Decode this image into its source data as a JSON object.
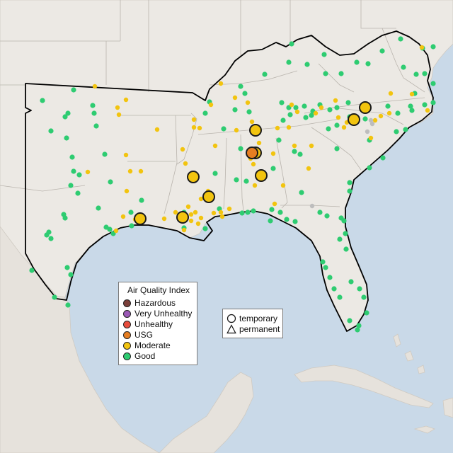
{
  "colors": {
    "ocean": "#c9d9e8",
    "land": "#ece9e4",
    "foreign_land": "#e6e2dc",
    "state_border": "#b9b4ad",
    "region_outline": "#000000",
    "good": "#2ecc71",
    "moderate": "#f2c40f",
    "usg": "#e67e22",
    "unhealthy": "#e74c3c",
    "very_unhealthy": "#9b59b6",
    "hazardous": "#7b3f3a",
    "no_data": "#bdbdbd"
  },
  "legend": {
    "title": "Air Quality Index",
    "items": [
      {
        "label": "Hazardous",
        "color": "#7b3f3a"
      },
      {
        "label": "Very Unhealthy",
        "color": "#9b59b6"
      },
      {
        "label": "Unhealthy",
        "color": "#e74c3c"
      },
      {
        "label": "USG",
        "color": "#e67e22"
      },
      {
        "label": "Moderate",
        "color": "#f2c40f"
      },
      {
        "label": "Good",
        "color": "#2ecc71"
      }
    ]
  },
  "monitor_type_legend": {
    "temporary": "temporary",
    "permanent": "permanent"
  }
}
